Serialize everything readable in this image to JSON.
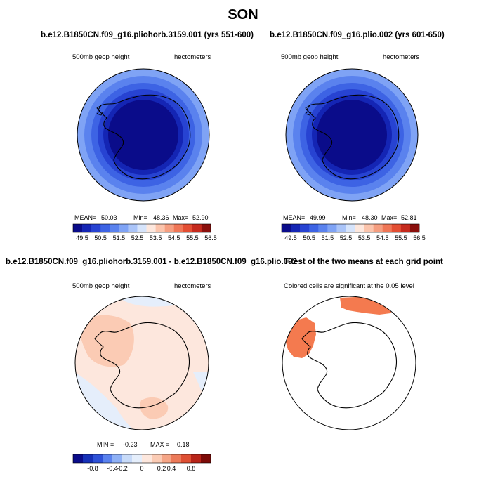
{
  "title": "SON",
  "panels": [
    {
      "title": "b.e12.B1850CN.f09_g16.pliohorb.3159.001 (yrs 551-600)",
      "left_label": "500mb geop height",
      "right_label": "hectometers",
      "stats": {
        "mean_label": "MEAN=",
        "mean": "50.03",
        "min_label": "Min=",
        "min": "48.36",
        "max_label": "Max=",
        "max": "52.90"
      },
      "colorbar_ticks": [
        "49.5",
        "50.5",
        "51.5",
        "52.5",
        "53.5",
        "54.5",
        "55.5",
        "56.5"
      ]
    },
    {
      "title": "b.e12.B1850CN.f09_g16.plio.002 (yrs 601-650)",
      "left_label": "500mb geop height",
      "right_label": "hectometers",
      "stats": {
        "mean_label": "MEAN=",
        "mean": "49.99",
        "min_label": "Min=",
        "min": "48.30",
        "max_label": "Max=",
        "max": "52.81"
      },
      "colorbar_ticks": [
        "49.5",
        "50.5",
        "51.5",
        "52.5",
        "53.5",
        "54.5",
        "55.5",
        "56.5"
      ]
    },
    {
      "title": "b.e12.B1850CN.f09_g16.pliohorb.3159.001 - b.e12.B1850CN.f09_g16.plio.002",
      "left_label": "500mb geop height",
      "right_label": "hectometers",
      "stats_text": {
        "min_label": "MIN =",
        "min": "-0.23",
        "max_label": "MAX =",
        "max": "0.18"
      },
      "colorbar_ticks": [
        "-0.8",
        "-0.4",
        "-0.2",
        "0",
        "0.2",
        "0.4",
        "0.8"
      ]
    },
    {
      "title": "T-test of the two means at each grid point",
      "subtitle": "Colored cells are significant at the 0.05 level"
    }
  ],
  "colors": {
    "full_scale": [
      "#0a0c8a",
      "#1425b4",
      "#2743d2",
      "#3d63e4",
      "#5a82ee",
      "#7fa3f5",
      "#aac4f8",
      "#d6e4fb",
      "#fde7dd",
      "#fbc4ac",
      "#f59e80",
      "#ef7656",
      "#e34e33",
      "#c52a1d",
      "#8a0f0c"
    ],
    "diff_scale": [
      "#0a0c8a",
      "#1631b8",
      "#2e52d8",
      "#5a82ee",
      "#8eb0f5",
      "#c7daf8",
      "#e5eefb",
      "#fde7dd",
      "#fbcbb4",
      "#f5a586",
      "#ec7a59",
      "#de4f33",
      "#b82419",
      "#7d0b08"
    ],
    "ttest_fill": "#f47a4f"
  }
}
